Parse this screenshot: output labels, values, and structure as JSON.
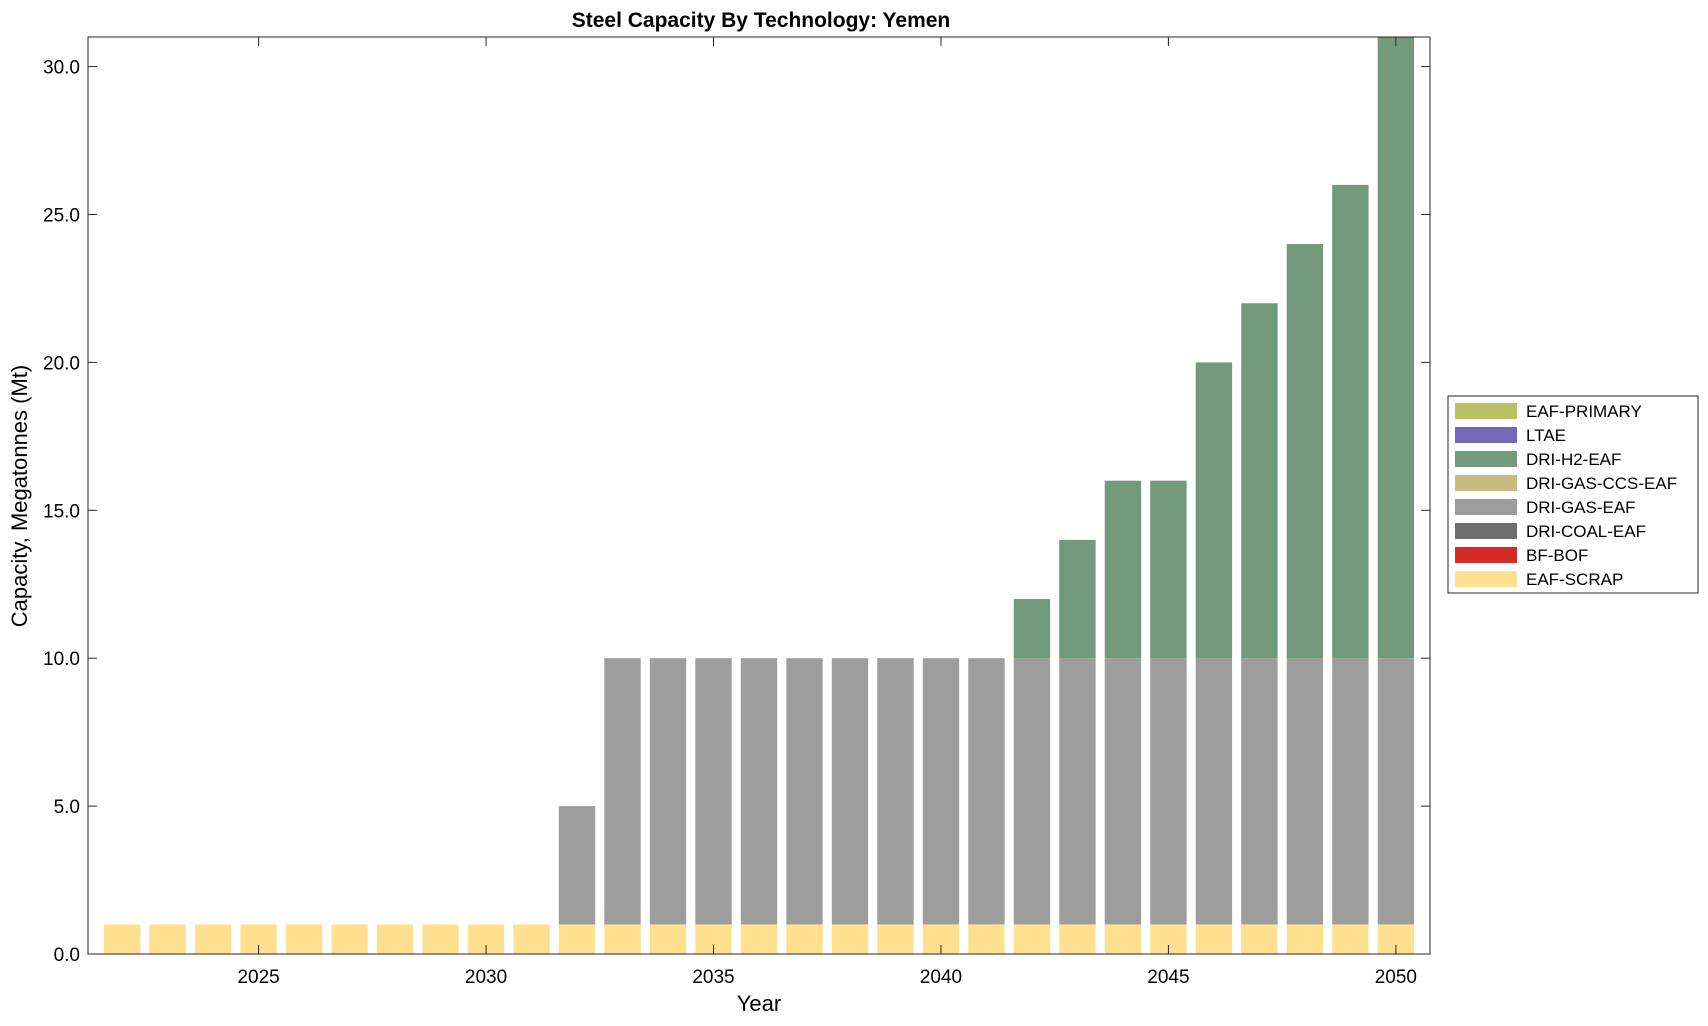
{
  "chart_data": {
    "type": "bar",
    "stacked": true,
    "title": "Steel Capacity By Technology: Yemen",
    "xlabel": "Year",
    "ylabel": "Capacity, Megatonnes (Mt)",
    "xlim": [
      2021.25,
      2050.75
    ],
    "ylim": [
      0,
      31
    ],
    "x_ticks": [
      2025,
      2030,
      2035,
      2040,
      2045,
      2050
    ],
    "x_tick_labels": [
      "2025",
      "2030",
      "2035",
      "2040",
      "2045",
      "2050"
    ],
    "y_ticks": [
      0,
      5,
      10,
      15,
      20,
      25,
      30
    ],
    "y_tick_labels": [
      "0.0",
      "5.0",
      "10.0",
      "15.0",
      "20.0",
      "25.0",
      "30.0"
    ],
    "grid": false,
    "legend_position": "right",
    "categories": [
      2022,
      2023,
      2024,
      2025,
      2026,
      2027,
      2028,
      2029,
      2030,
      2031,
      2032,
      2033,
      2034,
      2035,
      2036,
      2037,
      2038,
      2039,
      2040,
      2041,
      2042,
      2043,
      2044,
      2045,
      2046,
      2047,
      2048,
      2049,
      2050
    ],
    "series": [
      {
        "name": "EAF-SCRAP",
        "color": "#ffe08f",
        "values": [
          1,
          1,
          1,
          1,
          1,
          1,
          1,
          1,
          1,
          1,
          1,
          1,
          1,
          1,
          1,
          1,
          1,
          1,
          1,
          1,
          1,
          1,
          1,
          1,
          1,
          1,
          1,
          1,
          1
        ]
      },
      {
        "name": "BF-BOF",
        "color": "#d62a28",
        "values": [
          0,
          0,
          0,
          0,
          0,
          0,
          0,
          0,
          0,
          0,
          0,
          0,
          0,
          0,
          0,
          0,
          0,
          0,
          0,
          0,
          0,
          0,
          0,
          0,
          0,
          0,
          0,
          0,
          0
        ]
      },
      {
        "name": "DRI-COAL-EAF",
        "color": "#6e6e6e",
        "values": [
          0,
          0,
          0,
          0,
          0,
          0,
          0,
          0,
          0,
          0,
          0,
          0,
          0,
          0,
          0,
          0,
          0,
          0,
          0,
          0,
          0,
          0,
          0,
          0,
          0,
          0,
          0,
          0,
          0
        ]
      },
      {
        "name": "DRI-GAS-EAF",
        "color": "#9d9d9d",
        "values": [
          0,
          0,
          0,
          0,
          0,
          0,
          0,
          0,
          0,
          0,
          4,
          9,
          9,
          9,
          9,
          9,
          9,
          9,
          9,
          9,
          9,
          9,
          9,
          9,
          9,
          9,
          9,
          9,
          9
        ]
      },
      {
        "name": "DRI-GAS-CCS-EAF",
        "color": "#c6bb7d",
        "values": [
          0,
          0,
          0,
          0,
          0,
          0,
          0,
          0,
          0,
          0,
          0,
          0,
          0,
          0,
          0,
          0,
          0,
          0,
          0,
          0,
          0,
          0,
          0,
          0,
          0,
          0,
          0,
          0,
          0
        ]
      },
      {
        "name": "DRI-H2-EAF",
        "color": "#73997c",
        "values": [
          0,
          0,
          0,
          0,
          0,
          0,
          0,
          0,
          0,
          0,
          0,
          0,
          0,
          0,
          0,
          0,
          0,
          0,
          0,
          0,
          2,
          4,
          6,
          6,
          10,
          12,
          14,
          16,
          21
        ]
      },
      {
        "name": "LTAE",
        "color": "#7468b8",
        "values": [
          0,
          0,
          0,
          0,
          0,
          0,
          0,
          0,
          0,
          0,
          0,
          0,
          0,
          0,
          0,
          0,
          0,
          0,
          0,
          0,
          0,
          0,
          0,
          0,
          0,
          0,
          0,
          0,
          0
        ]
      },
      {
        "name": "EAF-PRIMARY",
        "color": "#b8c063",
        "values": [
          0,
          0,
          0,
          0,
          0,
          0,
          0,
          0,
          0,
          0,
          0,
          0,
          0,
          0,
          0,
          0,
          0,
          0,
          0,
          0,
          0,
          0,
          0,
          0,
          0,
          0,
          0,
          0,
          0
        ]
      }
    ],
    "legend_order": [
      "EAF-PRIMARY",
      "LTAE",
      "DRI-H2-EAF",
      "DRI-GAS-CCS-EAF",
      "DRI-GAS-EAF",
      "DRI-COAL-EAF",
      "BF-BOF",
      "EAF-SCRAP"
    ]
  }
}
